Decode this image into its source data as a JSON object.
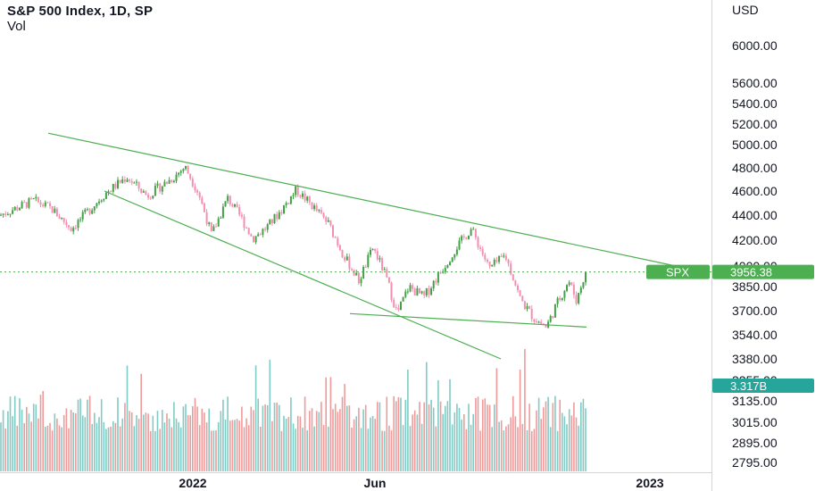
{
  "chart_data": {
    "type": "candlestick",
    "title": "S&P 500 Index, 1D, SP",
    "volume_label": "Vol",
    "currency": "USD",
    "y_scale": "log",
    "ylim": [
      2795,
      6400
    ],
    "price_ticks": [
      6000,
      5600,
      5400,
      5200,
      5000,
      4800,
      4600,
      4400,
      4200,
      4000,
      3850,
      3700,
      3540,
      3380,
      3255,
      3135,
      3015,
      2895,
      2795
    ],
    "price_tick_labels": [
      "6000.00",
      "5600.00",
      "5400.00",
      "5200.00",
      "5000.00",
      "4800.00",
      "4600.00",
      "4400.00",
      "4200.00",
      "4000.00",
      "3850.00",
      "3700.00",
      "3540.00",
      "3380.00",
      "3255.00",
      "3135.00",
      "3015.00",
      "2895.00",
      "2795.00"
    ],
    "time_labels": [
      "2022",
      "Jun",
      "2023"
    ],
    "last_price": 3956.38,
    "last_price_label": "3956.38",
    "symbol_tag": "SPX",
    "last_volume_label": "3.317B",
    "waypoints": [
      {
        "x": 0,
        "p": 4400
      },
      {
        "x": 38,
        "p": 4520
      },
      {
        "x": 58,
        "p": 4450
      },
      {
        "x": 80,
        "p": 4290
      },
      {
        "x": 118,
        "p": 4580
      },
      {
        "x": 142,
        "p": 4720
      },
      {
        "x": 165,
        "p": 4560
      },
      {
        "x": 195,
        "p": 4720
      },
      {
        "x": 207,
        "p": 4810
      },
      {
        "x": 222,
        "p": 4590
      },
      {
        "x": 237,
        "p": 4240
      },
      {
        "x": 255,
        "p": 4540
      },
      {
        "x": 270,
        "p": 4380
      },
      {
        "x": 283,
        "p": 4210
      },
      {
        "x": 300,
        "p": 4310
      },
      {
        "x": 315,
        "p": 4440
      },
      {
        "x": 332,
        "p": 4610
      },
      {
        "x": 348,
        "p": 4490
      },
      {
        "x": 368,
        "p": 4330
      },
      {
        "x": 385,
        "p": 4080
      },
      {
        "x": 402,
        "p": 3890
      },
      {
        "x": 418,
        "p": 4140
      },
      {
        "x": 430,
        "p": 3960
      },
      {
        "x": 445,
        "p": 3680
      },
      {
        "x": 458,
        "p": 3850
      },
      {
        "x": 475,
        "p": 3780
      },
      {
        "x": 495,
        "p": 3970
      },
      {
        "x": 512,
        "p": 4150
      },
      {
        "x": 528,
        "p": 4290
      },
      {
        "x": 548,
        "p": 3980
      },
      {
        "x": 566,
        "p": 4080
      },
      {
        "x": 582,
        "p": 3780
      },
      {
        "x": 598,
        "p": 3650
      },
      {
        "x": 612,
        "p": 3590
      },
      {
        "x": 622,
        "p": 3720
      },
      {
        "x": 637,
        "p": 3890
      },
      {
        "x": 646,
        "p": 3760
      },
      {
        "x": 656,
        "p": 3956
      }
    ],
    "trend_lines": [
      {
        "name": "upper",
        "from": {
          "x": 54,
          "p": 5110
        },
        "to": {
          "x": 757,
          "p": 4000
        }
      },
      {
        "name": "lower",
        "from": {
          "x": 117,
          "p": 4600
        },
        "to": {
          "x": 561,
          "p": 3380
        }
      },
      {
        "name": "support",
        "from": {
          "x": 392,
          "p": 3680
        },
        "to": {
          "x": 657,
          "p": 3590
        }
      }
    ],
    "colors": {
      "up": "#43a047",
      "down": "#f48fb1",
      "vol_up": "#80cbc4",
      "vol_down": "#ef9a9a",
      "trend": "#4caf50",
      "last_price": "#4caf50",
      "volume_tag": "#26a69a",
      "grid": "#e0e3eb"
    }
  }
}
